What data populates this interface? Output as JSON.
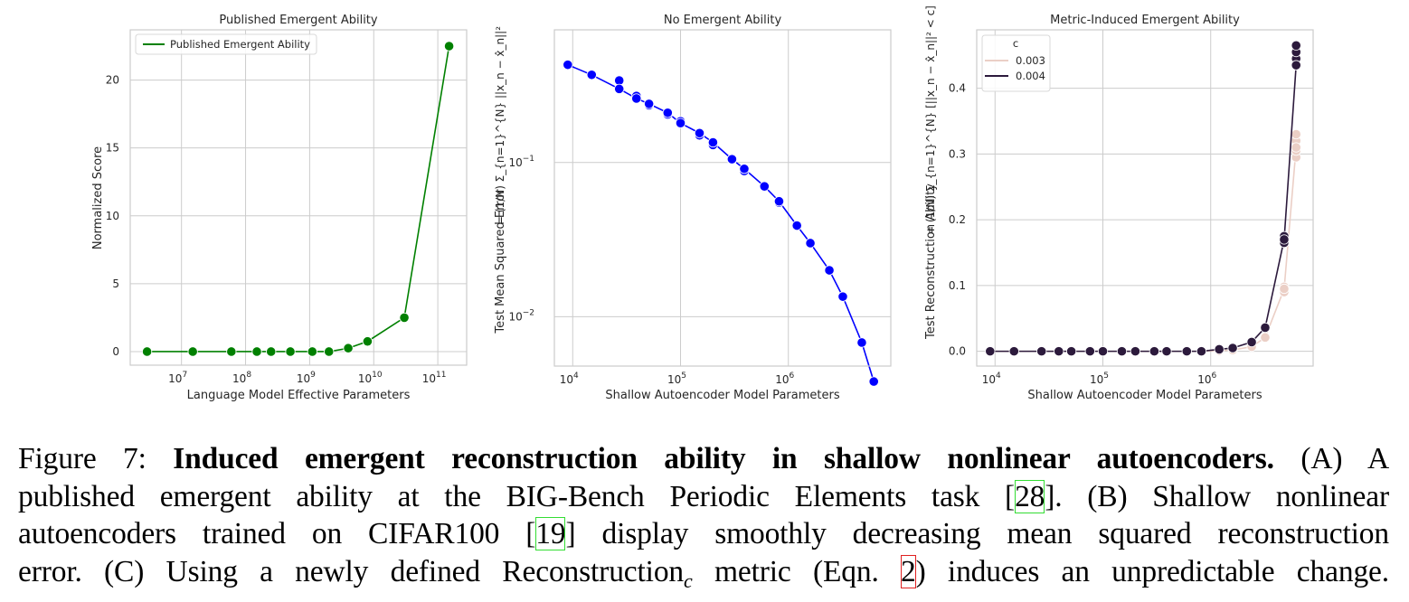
{
  "chart_data": [
    {
      "id": "A",
      "type": "line",
      "title": "Published Emergent Ability",
      "xlabel": "Language Model Effective Parameters",
      "ylabel": "Normalized Score",
      "xscale": "log",
      "xlim_log10": [
        6.2,
        11.45
      ],
      "ylim": [
        -1.0,
        23.7
      ],
      "xticks": [
        {
          "exp": 7,
          "label": "10",
          "sup": "7"
        },
        {
          "exp": 8,
          "label": "10",
          "sup": "8"
        },
        {
          "exp": 9,
          "label": "10",
          "sup": "9"
        },
        {
          "exp": 10,
          "label": "10",
          "sup": "10"
        },
        {
          "exp": 11,
          "label": "10",
          "sup": "11"
        }
      ],
      "yticks": [
        0,
        5,
        10,
        15,
        20
      ],
      "grid": true,
      "legend": {
        "placement": "top-left",
        "title": "",
        "entries": [
          {
            "label": "Published Emergent Ability",
            "color": "#008000"
          }
        ]
      },
      "series": [
        {
          "name": "Published Emergent Ability",
          "color": "#008000",
          "x": [
            2900000.0,
            15000000.0,
            60000000.0,
            150000000.0,
            250000000.0,
            500000000.0,
            1100000000.0,
            2000000000.0,
            4000000000.0,
            8000000000.0,
            30000000000.0,
            150000000000.0
          ],
          "y": [
            0,
            0,
            0,
            0,
            0,
            0,
            0,
            0,
            0.25,
            0.75,
            2.5,
            22.5
          ]
        }
      ]
    },
    {
      "id": "B",
      "type": "line",
      "title": "No Emergent Ability",
      "xlabel": "Shallow Autoencoder Model Parameters",
      "ylabel": "Test Mean Squared Error   =  (1/N) Σₙ₌₁ᴺ ||xₙ − x̂ₙ||²",
      "ylabel_plain": "Test Mean Squared Error",
      "ylabel_math": "= (1/N) Σ_{n=1}^{N} ||x_n − x̂_n||²",
      "xscale": "log",
      "yscale": "log",
      "xlim_log10": [
        3.83,
        6.95
      ],
      "ylim_log10": [
        -2.32,
        -0.14
      ],
      "xticks": [
        {
          "exp": 4,
          "label": "10",
          "sup": "4"
        },
        {
          "exp": 5,
          "label": "10",
          "sup": "5"
        },
        {
          "exp": 6,
          "label": "10",
          "sup": "6"
        }
      ],
      "yticks": [
        {
          "exp": -1,
          "label": "10",
          "sup": "−1"
        },
        {
          "exp": -2,
          "label": "10",
          "sup": "−2"
        }
      ],
      "grid": true,
      "legend": null,
      "series": [
        {
          "name": "MSE",
          "color": "#0000ff",
          "x": [
            9000.0,
            15000.0,
            27000.0,
            39000.0,
            51000.0,
            76000.0,
            100000.0,
            150000.0,
            200000.0,
            300000.0,
            390000.0,
            600000.0,
            820000.0,
            1200000.0,
            1600000.0,
            2400000.0,
            3200000.0,
            4800000.0,
            6200000.0
          ],
          "y": [
            0.43,
            0.37,
            0.3,
            0.26,
            0.24,
            0.21,
            0.18,
            0.155,
            0.135,
            0.105,
            0.091,
            0.07,
            0.056,
            0.039,
            0.03,
            0.02,
            0.0135,
            0.0068,
            0.0038
          ],
          "y_alt": [
            null,
            null,
            0.34,
            0.27,
            0.235,
            0.205,
            0.185,
            0.15,
            0.13,
            0.104,
            0.088,
            null,
            0.055,
            null,
            null,
            null,
            null,
            null,
            null
          ]
        }
      ]
    },
    {
      "id": "C",
      "type": "line",
      "title": "Metric-Induced Emergent Ability",
      "xlabel": "Shallow Autoencoder Model Parameters",
      "ylabel": "Test Reconstruction Ability   =  (1/N) Σₙ₌₁ᴺ 𝟙[||xₙ − x̂ₙ||² < c]",
      "ylabel_plain": "Test Reconstruction Ability",
      "ylabel_math": "= (1/N) Σ_{n=1}^{N} [||x_n − x̂_n||² < c]",
      "xscale": "log",
      "xlim_log10": [
        3.83,
        6.95
      ],
      "ylim": [
        -0.0225,
        0.4888
      ],
      "xticks": [
        {
          "exp": 4,
          "label": "10",
          "sup": "4"
        },
        {
          "exp": 5,
          "label": "10",
          "sup": "5"
        },
        {
          "exp": 6,
          "label": "10",
          "sup": "6"
        }
      ],
      "yticks": [
        0.0,
        0.1,
        0.2,
        0.3,
        0.4
      ],
      "grid": true,
      "legend": {
        "placement": "top-left",
        "title": "c",
        "entries": [
          {
            "label": "0.003",
            "color": "#ebcfc6"
          },
          {
            "label": "0.004",
            "color": "#2c1a3c"
          }
        ]
      },
      "series": [
        {
          "name": "0.003",
          "color": "#ebcfc6",
          "x": [
            9000.0,
            15000.0,
            27000.0,
            39000.0,
            51000.0,
            76000.0,
            100000.0,
            150000.0,
            200000.0,
            300000.0,
            390000.0,
            600000.0,
            820000.0,
            1200000.0,
            1600000.0,
            2400000.0,
            3200000.0,
            4800000.0,
            6200000.0
          ],
          "y": [
            0,
            0,
            0,
            0,
            0,
            0,
            0,
            0,
            0,
            0,
            0,
            0,
            0,
            0.001,
            0.002,
            0.007,
            0.021,
            0.095,
            0.31
          ],
          "y_spread": [
            [
              6200000.0,
              0.295
            ],
            [
              6200000.0,
              0.305
            ],
            [
              6200000.0,
              0.32
            ],
            [
              6200000.0,
              0.33
            ],
            [
              4800000.0,
              0.09
            ],
            [
              4800000.0,
              0.098
            ]
          ]
        },
        {
          "name": "0.004",
          "color": "#2c1a3c",
          "x": [
            9000.0,
            15000.0,
            27000.0,
            39000.0,
            51000.0,
            76000.0,
            100000.0,
            150000.0,
            200000.0,
            300000.0,
            390000.0,
            600000.0,
            820000.0,
            1200000.0,
            1600000.0,
            2400000.0,
            3200000.0,
            4800000.0,
            6200000.0
          ],
          "y": [
            0,
            0,
            0,
            0,
            0,
            0,
            0,
            0,
            0,
            0,
            0,
            0,
            0,
            0.003,
            0.005,
            0.014,
            0.036,
            0.17,
            0.435
          ],
          "y_spread": [
            [
              6200000.0,
              0.435
            ],
            [
              6200000.0,
              0.445
            ],
            [
              6200000.0,
              0.455
            ],
            [
              6200000.0,
              0.465
            ],
            [
              4800000.0,
              0.165
            ],
            [
              4800000.0,
              0.175
            ]
          ]
        }
      ]
    }
  ],
  "caption": {
    "label": "Figure 7:",
    "bold_title": "Induced emergent reconstruction ability in shallow nonlinear autoencoders.",
    "line1_tail": "(A) A",
    "line2_pre": "published emergent ability at the BIG-Bench Periodic Elements task [",
    "ref1": "28",
    "line2_post": "].  (B) Shallow nonlinear",
    "line3_pre": "autoencoders trained on CIFAR100 [",
    "ref2": "19",
    "line3_post": "] display smoothly decreasing mean squared reconstruction",
    "line4_pre": "error. (C) Using a newly defined Reconstruction",
    "line4_sub": "c",
    "line4_mid": " metric (Eqn. ",
    "ref3": "2",
    "line4_post": ") induces an unpredictable change."
  }
}
